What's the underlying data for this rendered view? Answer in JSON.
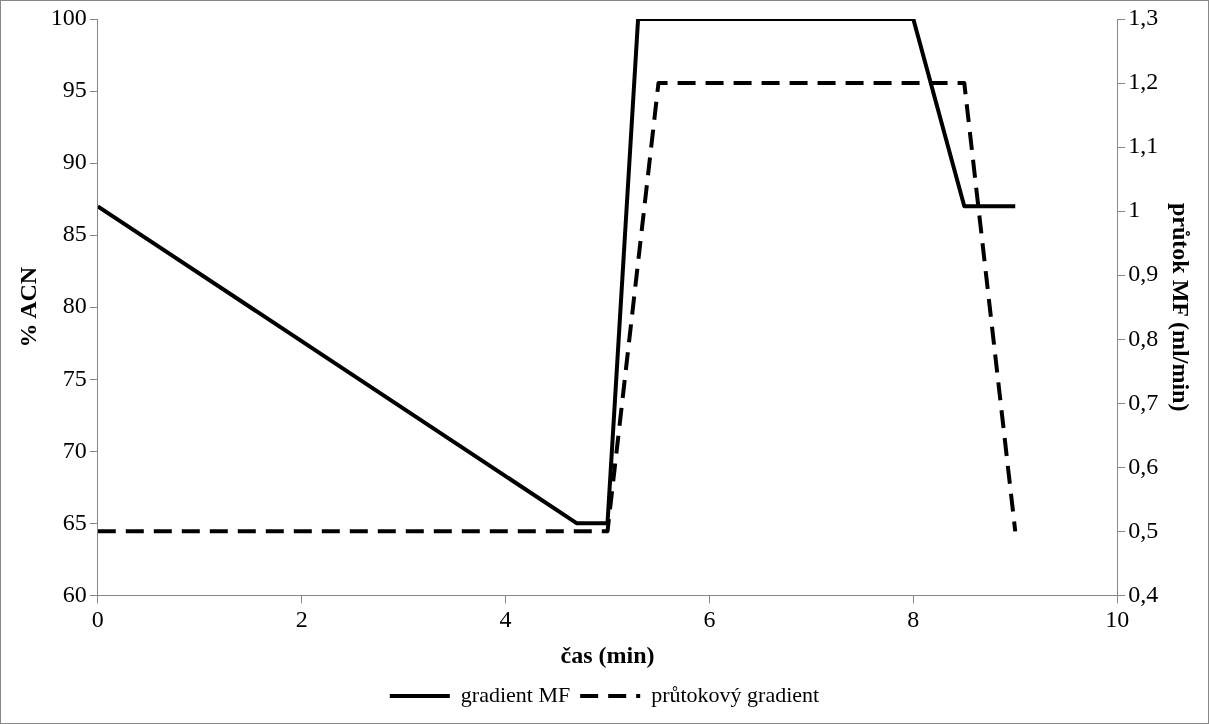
{
  "chart_data": {
    "type": "line",
    "xlabel": "čas (min)",
    "ylabel": "% ACN",
    "y2label": "průtok MF (ml/min)",
    "xlim": [
      0,
      10
    ],
    "xticks": [
      0,
      2,
      4,
      6,
      8,
      10
    ],
    "ylim": [
      60,
      100
    ],
    "yticks": [
      60,
      65,
      70,
      75,
      80,
      85,
      90,
      95,
      100
    ],
    "y2lim": [
      0.4,
      1.3
    ],
    "y2ticks": [
      {
        "value": 0.4,
        "label": "0,4"
      },
      {
        "value": 0.5,
        "label": "0,5"
      },
      {
        "value": 0.6,
        "label": "0,6"
      },
      {
        "value": 0.7,
        "label": "0,7"
      },
      {
        "value": 0.8,
        "label": "0,8"
      },
      {
        "value": 0.9,
        "label": "0,9"
      },
      {
        "value": 1,
        "label": "1"
      },
      {
        "value": 1.1,
        "label": "1,1"
      },
      {
        "value": 1.2,
        "label": "1,2"
      },
      {
        "value": 1.3,
        "label": "1,3"
      }
    ],
    "grid": false,
    "legend": "bottom",
    "marker": "none",
    "series": [
      {
        "name": "gradient MF",
        "color": "#000000",
        "line_style": "solid",
        "x": [
          0,
          4.7,
          5,
          5.3,
          8,
          8.5,
          9
        ],
        "values": [
          87,
          65,
          65,
          100,
          100,
          87,
          87
        ]
      },
      {
        "name": "průtokový gradient",
        "color": "#000000",
        "line_style": "dashed",
        "axis": "y2",
        "x": [
          0,
          5,
          5.5,
          8.5,
          9
        ],
        "values": [
          0.5,
          0.5,
          1.2,
          1.2,
          0.5
        ]
      }
    ]
  }
}
